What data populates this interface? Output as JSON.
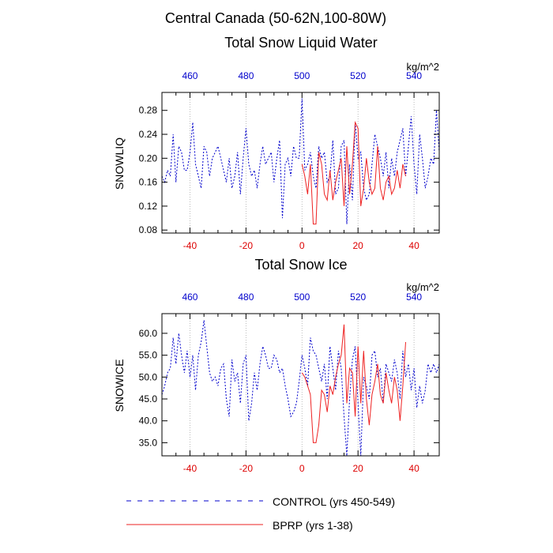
{
  "page_title": "Central Canada (50-62N,100-80W)",
  "legend": {
    "control_label": "CONTROL (yrs 450-549)",
    "bprp_label": "BPRP (yrs 1-38)"
  },
  "colors": {
    "control": "#0000cc",
    "bprp": "#ee2222",
    "top_ticks": "#0000cc",
    "bottom_ticks": "#dd0000"
  },
  "chart_data": [
    {
      "type": "line",
      "title": "Total Snow Liquid Water",
      "ylabel": "SNOWLIQ",
      "units": "kg/m^2",
      "xlabel": "",
      "xlim": [
        -50,
        49
      ],
      "ylim": [
        0.075,
        0.31
      ],
      "x_ticks": [
        -40,
        -20,
        0,
        20,
        40
      ],
      "x_tick_labels": [
        "-40",
        "-20",
        "0",
        "20",
        "40"
      ],
      "top_ticks": [
        -40,
        -20,
        0,
        20,
        40
      ],
      "top_tick_labels": [
        "460",
        "480",
        "500",
        "520",
        "540"
      ],
      "y_ticks": [
        0.08,
        0.12,
        0.16,
        0.2,
        0.24,
        0.28
      ],
      "y_tick_labels": [
        "0.08",
        "0.12",
        "0.16",
        "0.20",
        "0.24",
        "0.28"
      ],
      "grid": "vertical dotted",
      "series": [
        {
          "name": "CONTROL (yrs 450-549)",
          "x_start": -50,
          "values": [
            0.17,
            0.16,
            0.18,
            0.17,
            0.24,
            0.16,
            0.22,
            0.21,
            0.18,
            0.18,
            0.21,
            0.26,
            0.19,
            0.17,
            0.15,
            0.22,
            0.21,
            0.17,
            0.2,
            0.21,
            0.22,
            0.2,
            0.18,
            0.16,
            0.2,
            0.15,
            0.17,
            0.21,
            0.14,
            0.2,
            0.25,
            0.19,
            0.17,
            0.18,
            0.15,
            0.19,
            0.22,
            0.19,
            0.2,
            0.21,
            0.16,
            0.2,
            0.23,
            0.1,
            0.19,
            0.2,
            0.17,
            0.22,
            0.2,
            0.2,
            0.3,
            0.18,
            0.19,
            0.21,
            0.17,
            0.15,
            0.22,
            0.2,
            0.21,
            0.16,
            0.17,
            0.23,
            0.14,
            0.15,
            0.22,
            0.23,
            0.09,
            0.19,
            0.13,
            0.26,
            0.2,
            0.21,
            0.15,
            0.13,
            0.14,
            0.19,
            0.24,
            0.22,
            0.2,
            0.17,
            0.21,
            0.15,
            0.2,
            0.17,
            0.21,
            0.23,
            0.25,
            0.17,
            0.22,
            0.27,
            0.19,
            0.14,
            0.24,
            0.2,
            0.15,
            0.17,
            0.2,
            0.19,
            0.28,
            0.21
          ]
        },
        {
          "name": "BPRP (yrs 1-38)",
          "x_start": 0,
          "values": [
            0.19,
            0.17,
            0.14,
            0.19,
            0.09,
            0.09,
            0.21,
            0.19,
            0.14,
            0.13,
            0.18,
            0.13,
            0.16,
            0.18,
            0.2,
            0.12,
            0.22,
            0.14,
            0.19,
            0.26,
            0.25,
            0.12,
            0.15,
            0.2,
            0.16,
            0.14,
            0.15,
            0.22,
            0.15,
            0.13,
            0.16,
            0.17,
            0.14,
            0.15,
            0.18,
            0.15,
            0.19,
            0.17
          ]
        }
      ]
    },
    {
      "type": "line",
      "title": "Total Snow Ice",
      "ylabel": "SNOWICE",
      "units": "kg/m^2",
      "xlabel": "",
      "xlim": [
        -50,
        49
      ],
      "ylim": [
        32.0,
        64.5
      ],
      "x_ticks": [
        -40,
        -20,
        0,
        20,
        40
      ],
      "x_tick_labels": [
        "-40",
        "-20",
        "0",
        "20",
        "40"
      ],
      "top_ticks": [
        -40,
        -20,
        0,
        20,
        40
      ],
      "top_tick_labels": [
        "460",
        "480",
        "500",
        "520",
        "540"
      ],
      "y_ticks": [
        35,
        40,
        45,
        50,
        55,
        60
      ],
      "y_tick_labels": [
        "35.0",
        "40.0",
        "45.0",
        "50.0",
        "55.0",
        "60.0"
      ],
      "grid": "vertical dotted",
      "series": [
        {
          "name": "CONTROL (yrs 450-549)",
          "x_start": -50,
          "values": [
            46,
            48,
            51,
            52,
            59,
            53,
            60,
            55,
            51,
            56,
            50,
            55,
            47,
            55,
            58,
            63,
            57,
            51,
            49,
            50,
            48,
            52,
            53,
            45,
            41,
            54,
            49,
            51,
            44,
            53,
            55,
            40,
            44,
            51,
            47,
            53,
            57,
            55,
            52,
            52,
            55,
            54,
            51,
            52,
            48,
            45,
            41,
            42,
            44,
            49,
            55,
            52,
            48,
            59,
            56,
            55,
            52,
            49,
            53,
            45,
            57,
            52,
            47,
            56,
            52,
            41,
            32,
            45,
            54,
            57,
            44,
            32,
            50,
            48,
            45,
            55,
            56,
            50,
            52,
            44,
            53,
            51,
            49,
            54,
            51,
            45,
            56,
            50,
            53,
            47,
            52,
            43,
            48,
            44,
            47,
            53,
            51,
            53,
            51,
            53
          ]
        },
        {
          "name": "BPRP (yrs 1-38)",
          "x_start": 0,
          "values": [
            51,
            50,
            48,
            46,
            35,
            35,
            39,
            47,
            46,
            42,
            48,
            46,
            50,
            53,
            55,
            62,
            44,
            52,
            51,
            41,
            57,
            44,
            56,
            45,
            39,
            46,
            49,
            53,
            46,
            44,
            51,
            47,
            44,
            50,
            47,
            40,
            48,
            58
          ]
        }
      ]
    }
  ]
}
